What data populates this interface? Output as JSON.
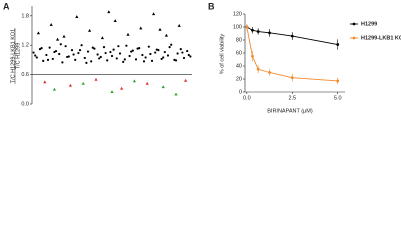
{
  "chart_data": [
    {
      "type": "scatter",
      "panel": "A",
      "ylabel": [
        "T/C H1299-LKB1 KO1",
        "T/C H1299"
      ],
      "xlim": [
        0,
        100
      ],
      "ylim": [
        0,
        2.0
      ],
      "yticks": [
        {
          "value": 0,
          "label": "0.0"
        },
        {
          "value": 0.6,
          "label": "0.6"
        },
        {
          "value": 1.2,
          "label": "1.2"
        },
        {
          "value": 1.8,
          "label": "1.8"
        }
      ],
      "reference_line": 0.6,
      "series": [
        {
          "color": "#000000",
          "marker": "circle",
          "x": [
            1,
            3,
            5,
            7,
            9,
            11,
            13,
            15,
            17,
            19,
            21,
            23,
            25,
            27,
            29,
            31,
            33,
            35,
            37,
            39,
            41,
            43,
            45,
            47,
            49,
            51,
            53,
            55,
            57,
            59,
            61,
            63,
            65,
            67,
            69,
            71,
            73,
            75,
            77,
            79,
            81,
            83,
            85,
            87,
            89,
            91,
            93,
            95,
            97,
            99,
            2,
            6,
            10,
            14,
            18,
            22,
            26,
            30,
            34,
            38,
            42,
            46,
            50,
            54,
            58,
            62,
            66,
            70,
            74,
            78,
            82,
            86,
            90,
            94,
            98
          ],
          "y": [
            1.05,
            0.95,
            1.12,
            0.88,
            1.0,
            1.15,
            0.92,
            1.08,
            1.02,
            0.85,
            1.18,
            0.97,
            1.1,
            0.9,
            1.04,
            1.2,
            0.94,
            1.07,
            0.87,
            1.13,
            1.01,
            0.96,
            1.16,
            0.89,
            1.06,
            1.11,
            0.93,
            1.03,
            0.86,
            1.19,
            0.98,
            1.09,
            0.91,
            1.14,
            1.0,
            0.95,
            1.17,
            0.88,
            1.05,
            1.1,
            0.92,
            1.06,
            0.99,
            1.21,
            0.9,
            1.03,
            1.12,
            0.94,
            1.08,
            0.97,
            0.99,
            1.14,
            0.9,
            1.06,
            1.22,
            0.96,
            1.01,
            1.1,
            0.84,
            1.15,
            0.93,
            1.04,
            0.98,
            1.18,
            0.91,
            1.07,
            1.13,
            0.87,
            1.02,
            1.11,
            0.95,
            1.16,
            0.89,
            1.05,
            1.0
          ]
        },
        {
          "color": "#000000",
          "marker": "triangle",
          "x": [
            4,
            12,
            20,
            28,
            36,
            44,
            52,
            60,
            68,
            76,
            84,
            92,
            16,
            48,
            80
          ],
          "y": [
            1.45,
            1.62,
            1.38,
            1.78,
            1.5,
            1.35,
            1.7,
            1.42,
            1.55,
            1.84,
            1.4,
            1.6,
            1.32,
            1.88,
            1.52
          ]
        },
        {
          "color": "#e0301e",
          "marker": "triangle",
          "x": [
            8,
            24,
            40,
            56,
            72,
            96
          ],
          "y": [
            0.45,
            0.38,
            0.5,
            0.32,
            0.42,
            0.48
          ]
        },
        {
          "color": "#2ca02c",
          "marker": "triangle",
          "x": [
            14,
            32,
            50,
            64,
            82,
            90
          ],
          "y": [
            0.3,
            0.42,
            0.25,
            0.47,
            0.35,
            0.2
          ]
        }
      ]
    },
    {
      "type": "line",
      "panel": "B",
      "xlabel": "BIRINAPANT (μM)",
      "ylabel": "% of cell viability",
      "x": [
        0,
        0.31,
        0.625,
        1.25,
        2.5,
        5.0
      ],
      "xlim": [
        -0.1,
        5.4
      ],
      "ylim": [
        0,
        120
      ],
      "xticks": [
        {
          "value": 0,
          "label": "0.0"
        },
        {
          "value": 2.5,
          "label": "2.5"
        },
        {
          "value": 5.0,
          "label": "5.0"
        }
      ],
      "yticks": [
        0,
        20,
        40,
        60,
        80,
        100,
        120
      ],
      "series": [
        {
          "name": "H1299",
          "color": "#000000",
          "values": [
            100,
            95,
            93,
            91,
            86,
            73
          ],
          "errors": [
            4,
            5,
            5,
            6,
            6,
            8
          ]
        },
        {
          "name": "H1299-LKB1 KO 1",
          "color": "#f28a2e",
          "values": [
            100,
            55,
            35,
            30,
            22,
            17
          ],
          "errors": [
            4,
            8,
            6,
            5,
            6,
            5
          ]
        }
      ]
    }
  ]
}
